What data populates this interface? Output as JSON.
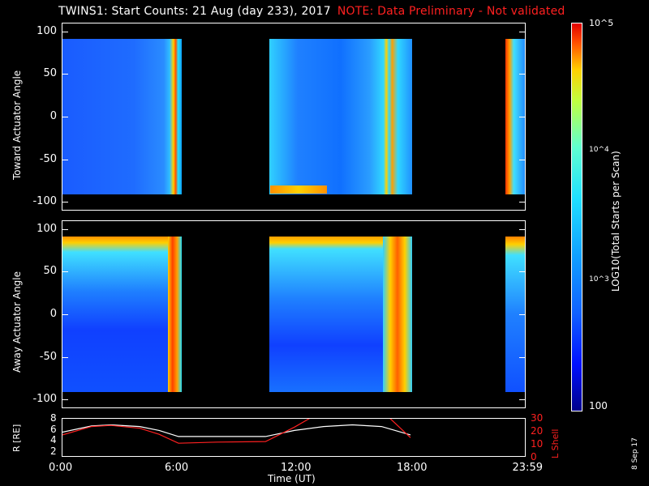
{
  "title": "TWINS1: Start Counts: 21 Aug (day 233), 2017",
  "note": "NOTE: Data Preliminary - Not validated",
  "date_stamp": "8 Sep 17",
  "colorbar": {
    "label": "LOG10(Total Starts per Scan)",
    "ticks": [
      "10^5",
      "10^4",
      "10^3",
      "100"
    ],
    "scale": "log"
  },
  "chart_data": [
    {
      "type": "heatmap",
      "ylabel": "Toward Actuator Angle",
      "ylim": [
        -110,
        110
      ],
      "yticks": [
        "100",
        "50",
        "0",
        "-50",
        "-100"
      ],
      "data_angle_range": [
        -90,
        90
      ],
      "time_intervals_hours": [
        [
          0.0,
          6.0
        ],
        [
          10.5,
          17.8
        ],
        [
          22.9,
          23.98
        ]
      ],
      "colorscale": "jet"
    },
    {
      "type": "heatmap",
      "ylabel": "Away Actuator Angle",
      "ylim": [
        -110,
        110
      ],
      "yticks": [
        "100",
        "50",
        "0",
        "-50",
        "-100"
      ],
      "data_angle_range": [
        -90,
        90
      ],
      "time_intervals_hours": [
        [
          0.0,
          6.0
        ],
        [
          10.5,
          17.8
        ],
        [
          22.9,
          23.98
        ]
      ],
      "colorscale": "jet"
    },
    {
      "type": "line",
      "xlabel": "Time (UT)",
      "xticks": [
        "0:00",
        "6:00",
        "12:00",
        "18:00",
        "23:59"
      ],
      "xlim": [
        0,
        24
      ],
      "ylabel_left": "R [RE]",
      "yticks_left": [
        "8",
        "6",
        "4",
        "2"
      ],
      "ylim_left": [
        1,
        8
      ],
      "ylabel_right": "L Shell",
      "yticks_right": [
        "30",
        "20",
        "10",
        "0"
      ],
      "ylim_right": [
        0,
        30
      ],
      "series": [
        {
          "color": "#ffffff",
          "x": [
            0.0,
            1.5,
            2.5,
            4.0,
            5.0,
            6.0,
            8.0,
            10.5,
            12.0,
            13.5,
            15.0,
            16.5,
            18.0
          ],
          "y": [
            5.6,
            6.7,
            6.9,
            6.6,
            5.9,
            4.8,
            4.8,
            4.8,
            5.9,
            6.6,
            6.9,
            6.6,
            5.1
          ]
        },
        {
          "color": "#ff2020",
          "x": [
            0.0,
            1.5,
            2.5,
            4.0,
            5.0,
            6.0,
            8.0,
            10.5,
            12.0,
            13.5,
            15.0,
            16.5,
            18.0
          ],
          "y": [
            5.1,
            6.6,
            6.8,
            6.3,
            5.2,
            3.6,
            3.8,
            3.9,
            6.5,
            9.5,
            9.5,
            9.5,
            4.6
          ]
        }
      ]
    }
  ]
}
